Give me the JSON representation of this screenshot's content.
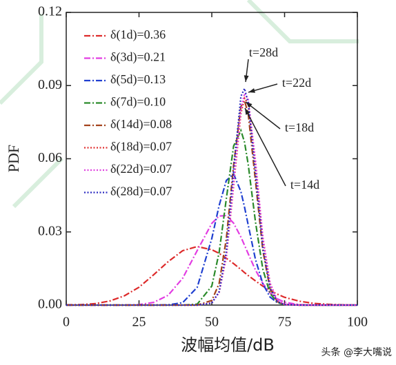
{
  "chart_data": {
    "type": "line",
    "xlabel": "波幅均值/dB",
    "ylabel": "PDF",
    "x": [
      0,
      5,
      10,
      15,
      20,
      25,
      30,
      35,
      40,
      45,
      50,
      52.5,
      55,
      57.5,
      60,
      61.25,
      62.5,
      65,
      67.5,
      70,
      72.5,
      75,
      80,
      85,
      90,
      95,
      100
    ],
    "series": [
      {
        "name": "δ(1d)=0.36",
        "color": "#dd2a2a",
        "style": "dashdot",
        "values": [
          0.0001,
          0.0002,
          0.0006,
          0.0017,
          0.0038,
          0.0073,
          0.0124,
          0.0178,
          0.0223,
          0.024,
          0.0227,
          0.0212,
          0.0192,
          0.017,
          0.0146,
          0.0133,
          0.0121,
          0.0099,
          0.0078,
          0.006,
          0.0045,
          0.0032,
          0.0016,
          0.0007,
          0.0003,
          0.0001,
          0
        ]
      },
      {
        "name": "δ(3d)=0.21",
        "color": "#e23ce2",
        "style": "dashdot",
        "values": [
          0,
          0,
          0,
          0,
          0,
          0.0002,
          0.0011,
          0.004,
          0.011,
          0.0224,
          0.0335,
          0.0365,
          0.0367,
          0.0336,
          0.0279,
          0.0245,
          0.021,
          0.0144,
          0.0089,
          0.005,
          0.0026,
          0.0012,
          0.0002,
          0,
          0,
          0,
          0
        ]
      },
      {
        "name": "δ(5d)=0.13",
        "color": "#1f3fd0",
        "style": "dashdot",
        "values": [
          0,
          0,
          0,
          0,
          0,
          0,
          0,
          0.0001,
          0.001,
          0.0073,
          0.0273,
          0.0408,
          0.0511,
          0.0538,
          0.0465,
          0.0401,
          0.0328,
          0.0187,
          0.0088,
          0.0033,
          0.001,
          0.0003,
          0,
          0,
          0,
          0,
          0
        ]
      },
      {
        "name": "δ(7d)=0.10",
        "color": "#2a8a2a",
        "style": "dashdot",
        "values": [
          0,
          0,
          0,
          0,
          0,
          0,
          0,
          0,
          0,
          0.0004,
          0.0078,
          0.0215,
          0.0437,
          0.0652,
          0.0716,
          0.0667,
          0.0576,
          0.0341,
          0.0148,
          0.0048,
          0.0011,
          0.0002,
          0,
          0,
          0,
          0,
          0
        ]
      },
      {
        "name": "δ(14d)=0.08",
        "color": "#a3421c",
        "style": "dashdot",
        "values": [
          0,
          0,
          0,
          0,
          0,
          0,
          0,
          0,
          0,
          0,
          0.0019,
          0.0088,
          0.0273,
          0.0573,
          0.0814,
          0.0838,
          0.0783,
          0.0509,
          0.0225,
          0.0067,
          0.0014,
          0.0002,
          0,
          0,
          0,
          0,
          0
        ]
      },
      {
        "name": "δ(18d)=0.07",
        "color": "#e03030",
        "style": "dot",
        "values": [
          0,
          0,
          0,
          0,
          0,
          0,
          0,
          0,
          0,
          0,
          0.0009,
          0.0051,
          0.0197,
          0.0488,
          0.0786,
          0.0848,
          0.0824,
          0.058,
          0.0276,
          0.0089,
          0.0019,
          0.0003,
          0,
          0,
          0,
          0,
          0
        ]
      },
      {
        "name": "δ(22d)=0.07",
        "color": "#e040e0",
        "style": "dot",
        "values": [
          0,
          0,
          0,
          0,
          0,
          0,
          0,
          0,
          0,
          0,
          0.0009,
          0.0052,
          0.0202,
          0.0499,
          0.0804,
          0.0868,
          0.0843,
          0.0594,
          0.0282,
          0.0091,
          0.0019,
          0.0003,
          0,
          0,
          0,
          0,
          0
        ]
      },
      {
        "name": "δ(28d)=0.07",
        "color": "#2a2ac0",
        "style": "dot",
        "values": [
          0,
          0,
          0,
          0,
          0,
          0,
          0,
          0,
          0,
          0,
          0.0008,
          0.0055,
          0.0222,
          0.0554,
          0.0856,
          0.0888,
          0.0829,
          0.054,
          0.0238,
          0.0071,
          0.0015,
          0.0002,
          0,
          0,
          0,
          0,
          0
        ]
      }
    ],
    "xlim": [
      0,
      100
    ],
    "xticks": [
      0,
      25,
      50,
      75,
      100
    ],
    "ylim": [
      0,
      0.12
    ],
    "yticks": [
      {
        "value": 0,
        "label": "0.00"
      },
      {
        "value": 0.03,
        "label": "0.03"
      },
      {
        "value": 0.06,
        "label": "0.06"
      },
      {
        "value": 0.09,
        "label": "0.09"
      },
      {
        "value": 0.12,
        "label": "0.12"
      }
    ],
    "annotations": [
      "t=28d",
      "t=22d",
      "t=18d",
      "t=14d"
    ],
    "watermark": "头条 @李大嘴说"
  }
}
